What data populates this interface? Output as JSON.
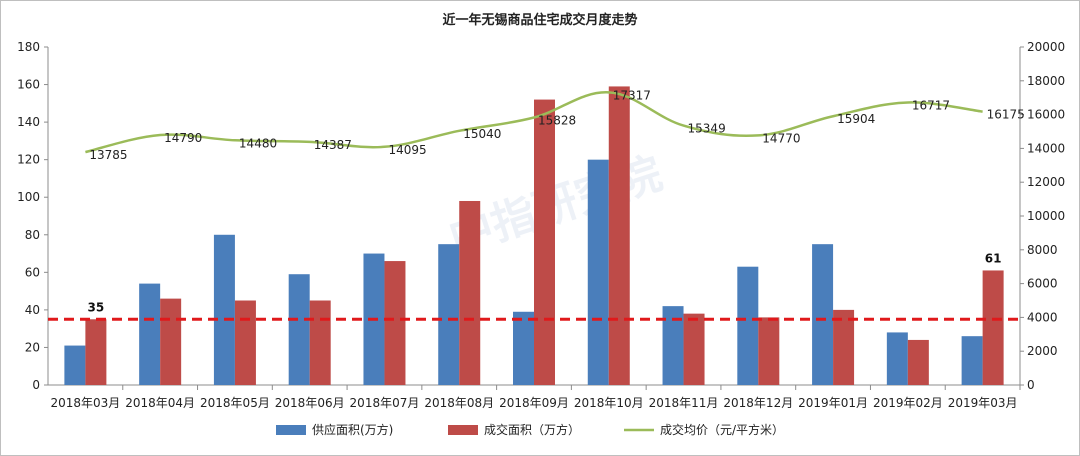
{
  "chart_data": {
    "type": "bar",
    "title": "近一年无锡商品住宅成交月度走势",
    "categories": [
      "2018年03月",
      "2018年04月",
      "2018年05月",
      "2018年06月",
      "2018年07月",
      "2018年08月",
      "2018年09月",
      "2018年10月",
      "2018年11月",
      "2018年12月",
      "2019年01月",
      "2019年02月",
      "2019年03月"
    ],
    "series": [
      {
        "name": "供应面积(万方)",
        "type": "bar",
        "axis": "left",
        "color": "#4a7ebb",
        "values": [
          21,
          54,
          80,
          59,
          70,
          75,
          39,
          120,
          42,
          63,
          75,
          28,
          26
        ]
      },
      {
        "name": "成交面积（万方）",
        "type": "bar",
        "axis": "left",
        "color": "#be4b48",
        "values": [
          35,
          46,
          45,
          45,
          66,
          98,
          152,
          159,
          38,
          36,
          40,
          24,
          61
        ]
      },
      {
        "name": "成交均价（元/平方米）",
        "type": "line",
        "axis": "right",
        "color": "#9bbb59",
        "values": [
          13785,
          14790,
          14480,
          14387,
          14095,
          15040,
          15828,
          17317,
          15349,
          14770,
          15904,
          16717,
          16175
        ]
      }
    ],
    "y_left": {
      "range": [
        0,
        180
      ],
      "ticks": [
        "0",
        "20",
        "40",
        "60",
        "80",
        "100",
        "120",
        "140",
        "160",
        "180"
      ]
    },
    "y_right": {
      "range": [
        0,
        20000
      ],
      "ticks": [
        "0",
        "2000",
        "4000",
        "6000",
        "8000",
        "10000",
        "12000",
        "14000",
        "16000",
        "18000",
        "20000"
      ]
    },
    "reference_line": {
      "value": 35,
      "axis": "left",
      "color": "#e0191b",
      "style": "dashed"
    },
    "bar_labels": [
      {
        "category": "2018年03月",
        "series": "成交面积（万方）",
        "text": "35"
      },
      {
        "category": "2019年03月",
        "series": "成交面积（万方）",
        "text": "61"
      }
    ],
    "legend_position": "bottom",
    "grid": false
  },
  "watermark": "中指研究院"
}
